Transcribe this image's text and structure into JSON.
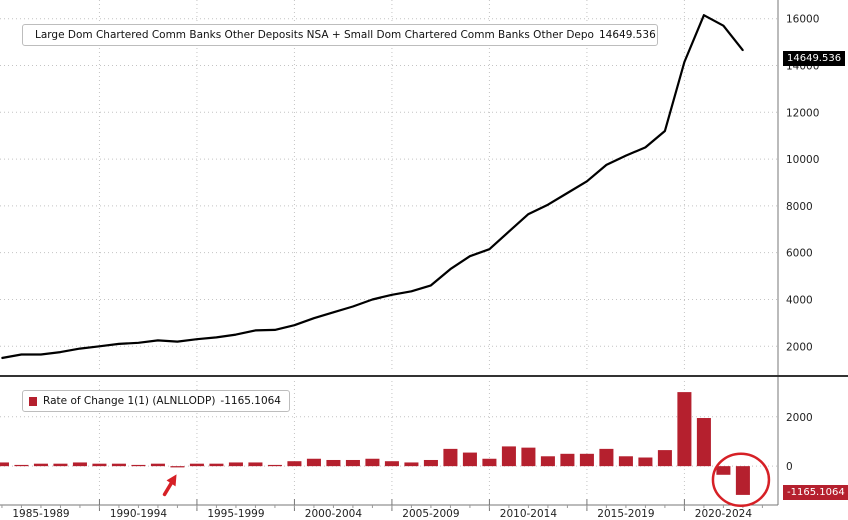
{
  "chart_data": [
    {
      "type": "line",
      "series": [
        {
          "name": "Large Dom Chartered Comm Banks Other Deposits NSA + Small Dom Chartered Comm Banks Other Depo",
          "last_value_label": "14649.536",
          "x": [
            1985,
            1986,
            1987,
            1988,
            1989,
            1990,
            1991,
            1992,
            1993,
            1994,
            1995,
            1996,
            1997,
            1998,
            1999,
            2000,
            2001,
            2002,
            2003,
            2004,
            2005,
            2006,
            2007,
            2008,
            2009,
            2010,
            2011,
            2012,
            2013,
            2014,
            2015,
            2016,
            2017,
            2018,
            2019,
            2020,
            2021,
            2022,
            2023
          ],
          "values": [
            1500,
            1650,
            1650,
            1750,
            1900,
            2000,
            2100,
            2150,
            2250,
            2200,
            2300,
            2380,
            2500,
            2680,
            2700,
            2900,
            3200,
            3450,
            3700,
            4000,
            4200,
            4350,
            4600,
            5300,
            5850,
            6150,
            6900,
            7650,
            8050,
            8550,
            9050,
            9750,
            10150,
            10500,
            11200,
            14150,
            16150,
            15700,
            14649.536
          ],
          "color": "#000000"
        }
      ],
      "xlim": [
        1984.9,
        2024.8
      ],
      "ylim": [
        900,
        16800
      ],
      "yticks": [
        2000,
        4000,
        6000,
        8000,
        10000,
        12000,
        14000,
        16000
      ],
      "ytick_labels": [
        "2000",
        "4000",
        "6000",
        "8000",
        "10000",
        "12000",
        "14000",
        "16000"
      ],
      "grid": true
    },
    {
      "type": "bar",
      "series": [
        {
          "name": "Rate of Change 1(1) (ALNLLODP)",
          "last_value_label": "-1165.1064",
          "x": [
            1985,
            1986,
            1987,
            1988,
            1989,
            1990,
            1991,
            1992,
            1993,
            1994,
            1995,
            1996,
            1997,
            1998,
            1999,
            2000,
            2001,
            2002,
            2003,
            2004,
            2005,
            2006,
            2007,
            2008,
            2009,
            2010,
            2011,
            2012,
            2013,
            2014,
            2015,
            2016,
            2017,
            2018,
            2019,
            2020,
            2021,
            2022,
            2023
          ],
          "values": [
            150,
            50,
            100,
            100,
            150,
            100,
            100,
            50,
            100,
            -50,
            100,
            100,
            150,
            150,
            50,
            200,
            300,
            250,
            250,
            300,
            200,
            150,
            250,
            700,
            550,
            300,
            800,
            750,
            400,
            500,
            500,
            700,
            400,
            350,
            650,
            3000,
            1950,
            -350,
            -1165.1064
          ],
          "color": "#b5202e"
        }
      ],
      "xlim": [
        1984.9,
        2024.8
      ],
      "ylim": [
        -1250,
        3450
      ],
      "yticks": [
        0,
        2000
      ],
      "ytick_labels": [
        "0",
        "2000"
      ],
      "grid": true
    }
  ],
  "x_axis": {
    "labels": [
      {
        "text": "1985-1989",
        "center": 1987
      },
      {
        "text": "1990-1994",
        "center": 1992
      },
      {
        "text": "1995-1999",
        "center": 1997
      },
      {
        "text": "2000-2004",
        "center": 2002
      },
      {
        "text": "2005-2009",
        "center": 2007
      },
      {
        "text": "2010-2014",
        "center": 2012
      },
      {
        "text": "2015-2019",
        "center": 2017
      },
      {
        "text": "2020-2024",
        "center": 2022
      }
    ],
    "boundaries": [
      1990,
      1995,
      2000,
      2005,
      2010,
      2015,
      2020
    ]
  },
  "annotations": {
    "arrow_color": "#d62026",
    "circle_color": "#d62026"
  }
}
